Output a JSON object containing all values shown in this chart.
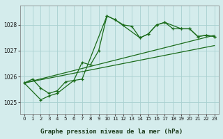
{
  "title": "Graphe pression niveau de la mer (hPa)",
  "bg_color": "#d4ecec",
  "grid_color": "#a8d0d0",
  "line_color": "#1a6b1a",
  "hours": [
    0,
    1,
    2,
    3,
    4,
    5,
    6,
    7,
    8,
    9,
    10,
    11,
    12,
    13,
    14,
    15,
    16,
    17,
    18,
    19,
    20,
    21,
    22,
    23
  ],
  "main_line": [
    1025.75,
    1025.9,
    1025.55,
    1025.35,
    1025.45,
    1025.8,
    1025.85,
    1026.55,
    1026.45,
    1027.0,
    1028.35,
    1028.2,
    1028.0,
    1027.95,
    1027.5,
    1027.65,
    1028.0,
    1028.1,
    1027.85,
    1027.85,
    1027.85,
    1027.55,
    1027.6,
    1027.55
  ],
  "second_line_x": [
    0,
    2,
    3,
    4,
    6,
    7,
    10,
    11,
    14,
    15,
    16,
    17,
    19,
    20,
    21,
    22,
    23
  ],
  "second_line_y": [
    1025.75,
    1025.1,
    1025.25,
    1025.35,
    1025.85,
    1025.9,
    1028.35,
    1028.2,
    1027.5,
    1027.65,
    1028.0,
    1028.1,
    1027.85,
    1027.85,
    1027.55,
    1027.6,
    1027.55
  ],
  "trend1_x": [
    0,
    23
  ],
  "trend1_y": [
    1025.75,
    1027.6
  ],
  "trend2_x": [
    0,
    23
  ],
  "trend2_y": [
    1025.75,
    1027.2
  ],
  "xlim": [
    -0.5,
    23.5
  ],
  "ylim": [
    1024.55,
    1028.75
  ],
  "yticks": [
    1025,
    1026,
    1027,
    1028
  ],
  "xticks": [
    0,
    1,
    2,
    3,
    4,
    5,
    6,
    7,
    8,
    9,
    10,
    11,
    12,
    13,
    14,
    15,
    16,
    17,
    18,
    19,
    20,
    21,
    22,
    23
  ]
}
